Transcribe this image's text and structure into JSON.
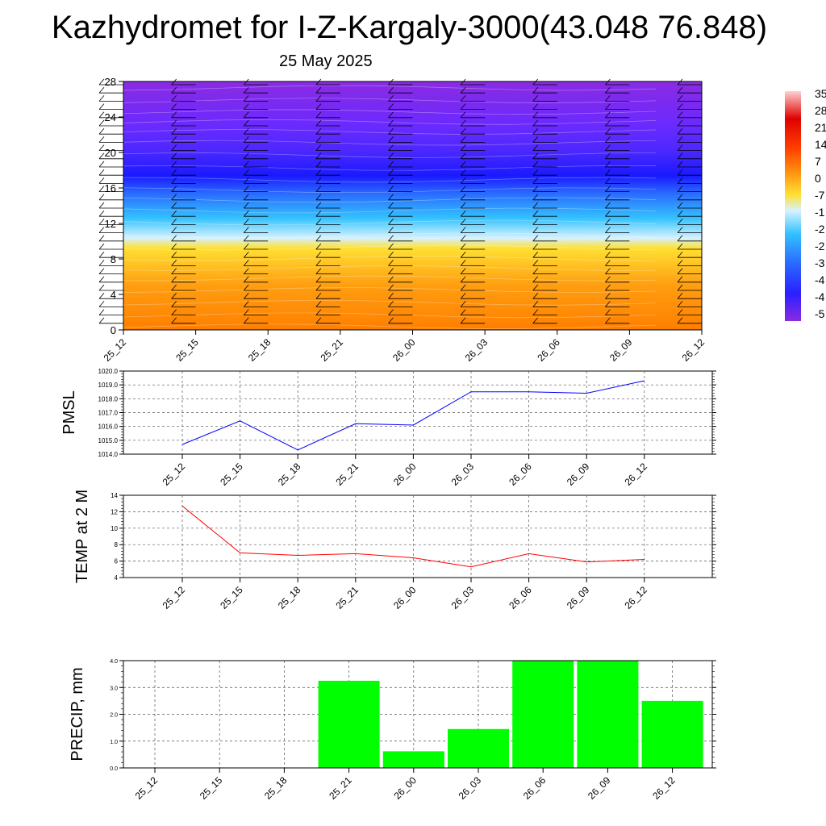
{
  "header": {
    "title": "Kazhydromet for I-Z-Kargaly-3000(43.048 76.848)",
    "date": "25 May 2025"
  },
  "chart_data": [
    {
      "type": "heatmap",
      "name": "cross-section",
      "y_ticks": [
        "0",
        "4",
        "8",
        "12",
        "16",
        "20",
        "24",
        "28"
      ],
      "ylim": [
        0,
        28
      ],
      "x_ticks": [
        "25_12",
        "25_15",
        "25_18",
        "25_21",
        "26_00",
        "26_03",
        "26_06",
        "26_09",
        "26_12"
      ],
      "colorbar_labels": [
        "35",
        "28",
        "21",
        "14",
        "7",
        "0",
        "-7",
        "-1",
        "-2",
        "-2",
        "-3",
        "-4",
        "-4",
        "-5"
      ],
      "colors": {
        "warm": "#ff7f00",
        "yellow": "#ffe033",
        "cyan": "#33c2ff",
        "blue": "#2a1fff",
        "violet": "#8a2be2"
      },
      "wind_barbs": true
    },
    {
      "type": "line",
      "ylabel": "PMSL",
      "categories": [
        "25_12",
        "25_15",
        "25_18",
        "25_21",
        "26_00",
        "26_03",
        "26_06",
        "26_09",
        "26_12"
      ],
      "values": [
        1014.7,
        1016.4,
        1014.3,
        1016.2,
        1016.1,
        1018.5,
        1018.5,
        1018.4,
        1019.3
      ],
      "ylim": [
        1014.0,
        1020.0
      ],
      "y_ticks": [
        "1014.0",
        "1015.0",
        "1016.0",
        "1017.0",
        "1018.0",
        "1019.0",
        "1020.0"
      ],
      "color": "#0000ff",
      "grid": true
    },
    {
      "type": "line",
      "ylabel": "TEMP at 2 M",
      "categories": [
        "25_12",
        "25_15",
        "25_18",
        "25_21",
        "26_00",
        "26_03",
        "26_06",
        "26_09",
        "26_12"
      ],
      "values": [
        12.7,
        7.0,
        6.7,
        6.9,
        6.4,
        5.3,
        6.9,
        5.9,
        6.2
      ],
      "ylim": [
        4,
        14
      ],
      "y_ticks": [
        "4",
        "6",
        "8",
        "10",
        "12",
        "14"
      ],
      "color": "#ff0000",
      "grid": true
    },
    {
      "type": "bar",
      "ylabel": "PRECIP, mm",
      "categories": [
        "25_12",
        "25_15",
        "25_18",
        "25_21",
        "26_00",
        "26_03",
        "26_06",
        "26_09",
        "26_12"
      ],
      "values": [
        0,
        0,
        0,
        3.25,
        0.62,
        1.45,
        4.0,
        4.0,
        2.5
      ],
      "ylim": [
        0,
        4.0
      ],
      "y_ticks": [
        "0.0",
        "1.0",
        "2.0",
        "3.0",
        "4.0"
      ],
      "color": "#00ff00",
      "grid": true
    }
  ]
}
